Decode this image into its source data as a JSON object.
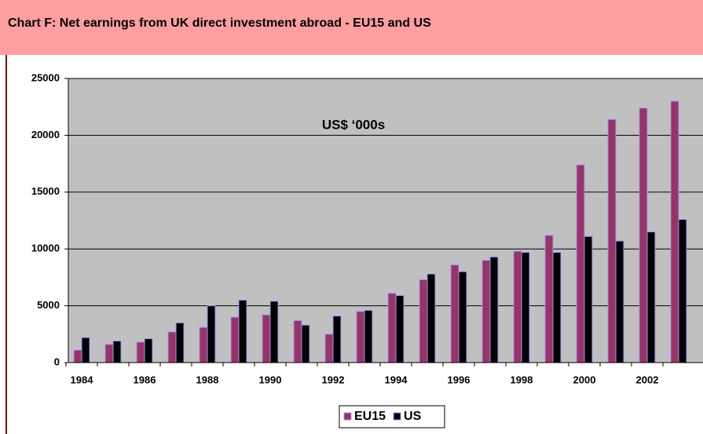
{
  "chart_data": {
    "type": "bar",
    "title": "Chart F: Net earnings from UK direct investment abroad - EU15 and US",
    "annotation": "US$ ‘000s",
    "categories": [
      "1984",
      null,
      "1986",
      null,
      "1988",
      null,
      "1990",
      null,
      "1992",
      null,
      "1994",
      null,
      "1996",
      null,
      "1998",
      null,
      "2000",
      null,
      "2002",
      null
    ],
    "series": [
      {
        "name": "EU15",
        "color": "#993366",
        "values": [
          1100,
          1600,
          1800,
          2700,
          3100,
          4000,
          4200,
          3700,
          2500,
          4500,
          6100,
          7300,
          8600,
          9000,
          9800,
          11200,
          17400,
          21400,
          22400,
          23000
        ]
      },
      {
        "name": "US",
        "color": "#000000",
        "values": [
          2200,
          1900,
          2100,
          3500,
          5000,
          5500,
          5400,
          3300,
          4100,
          4600,
          5900,
          7800,
          8000,
          9300,
          9700,
          9700,
          11100,
          10700,
          11500,
          12600
        ]
      }
    ],
    "ylim": [
      0,
      25000
    ],
    "yticks": [
      0,
      5000,
      10000,
      15000,
      20000,
      25000
    ],
    "grid": true,
    "legend": "bottom"
  }
}
